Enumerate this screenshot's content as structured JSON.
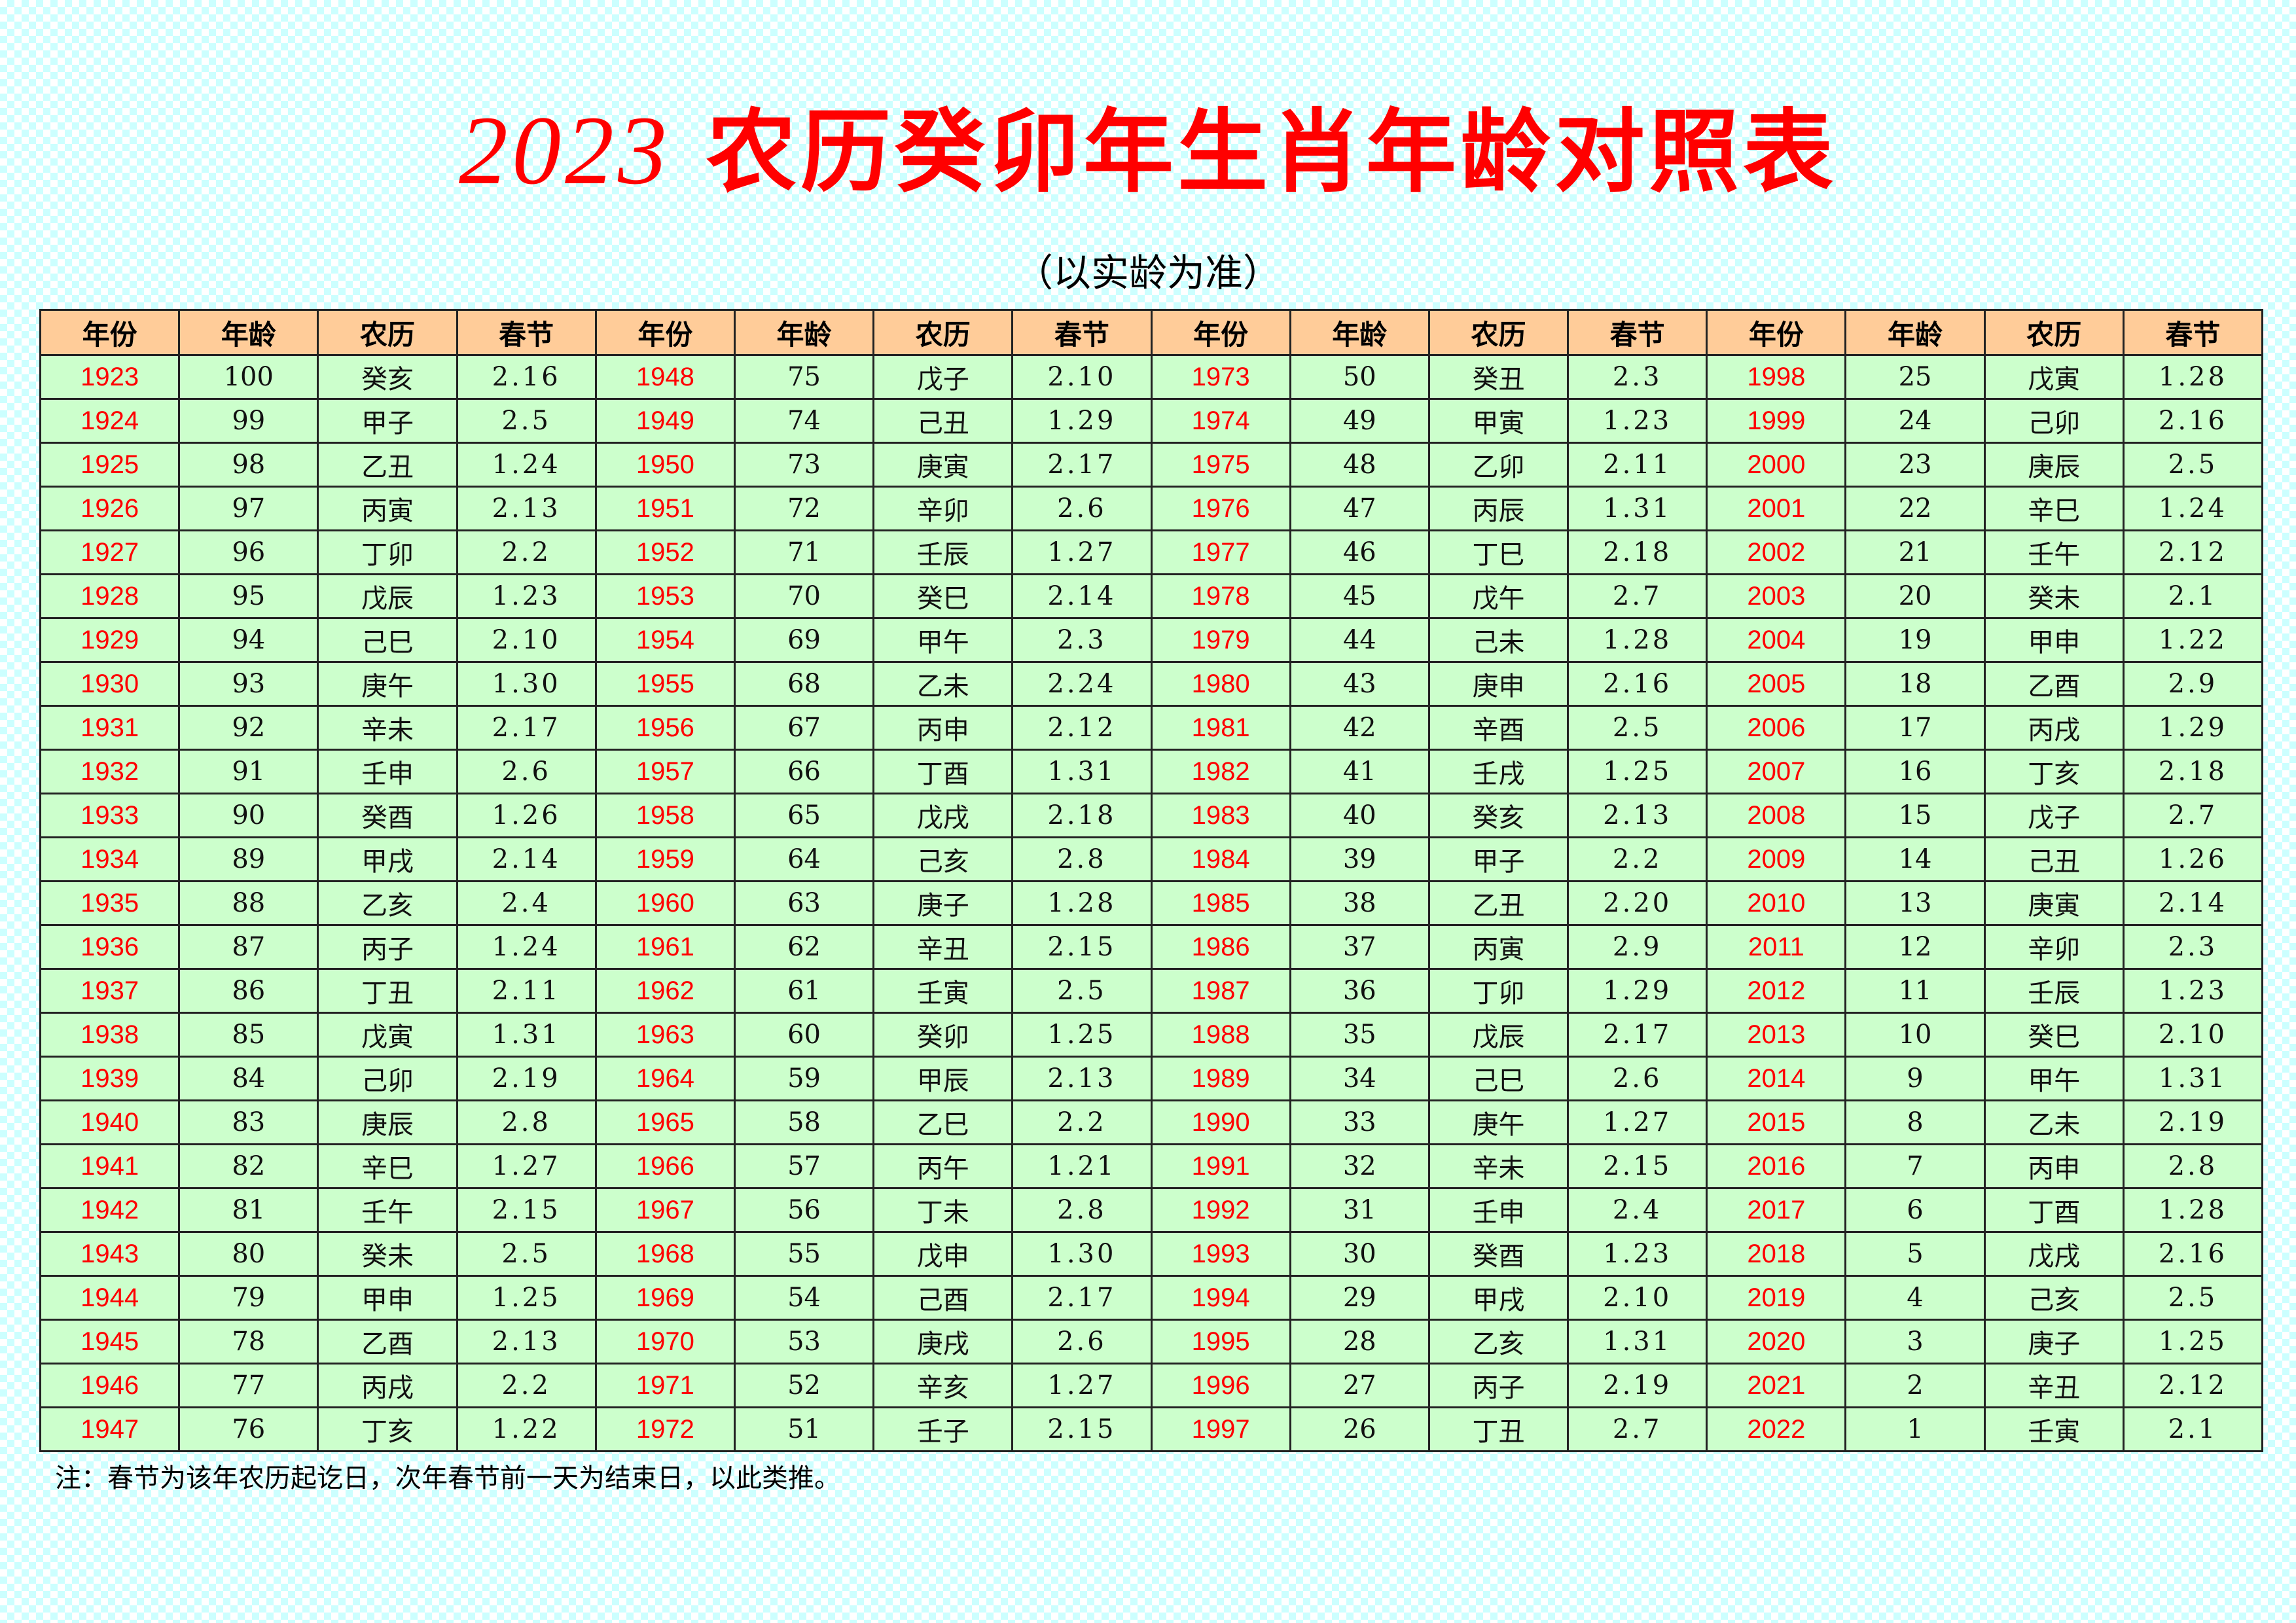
{
  "title": {
    "year": "2023",
    "text": "农历癸卯年生肖年龄对照表"
  },
  "subtitle": "（以实龄为准）",
  "headers": [
    "年份",
    "年龄",
    "农历",
    "春节",
    "年份",
    "年龄",
    "农历",
    "春节",
    "年份",
    "年龄",
    "农历",
    "春节",
    "年份",
    "年龄",
    "农历",
    "春节"
  ],
  "rows": [
    [
      "1923",
      "100",
      "癸亥",
      "2.16",
      "1948",
      "75",
      "戊子",
      "2.10",
      "1973",
      "50",
      "癸丑",
      "2.3",
      "1998",
      "25",
      "戊寅",
      "1.28"
    ],
    [
      "1924",
      "99",
      "甲子",
      "2.5",
      "1949",
      "74",
      "己丑",
      "1.29",
      "1974",
      "49",
      "甲寅",
      "1.23",
      "1999",
      "24",
      "己卯",
      "2.16"
    ],
    [
      "1925",
      "98",
      "乙丑",
      "1.24",
      "1950",
      "73",
      "庚寅",
      "2.17",
      "1975",
      "48",
      "乙卯",
      "2.11",
      "2000",
      "23",
      "庚辰",
      "2.5"
    ],
    [
      "1926",
      "97",
      "丙寅",
      "2.13",
      "1951",
      "72",
      "辛卯",
      "2.6",
      "1976",
      "47",
      "丙辰",
      "1.31",
      "2001",
      "22",
      "辛巳",
      "1.24"
    ],
    [
      "1927",
      "96",
      "丁卯",
      "2.2",
      "1952",
      "71",
      "壬辰",
      "1.27",
      "1977",
      "46",
      "丁巳",
      "2.18",
      "2002",
      "21",
      "壬午",
      "2.12"
    ],
    [
      "1928",
      "95",
      "戊辰",
      "1.23",
      "1953",
      "70",
      "癸巳",
      "2.14",
      "1978",
      "45",
      "戊午",
      "2.7",
      "2003",
      "20",
      "癸未",
      "2.1"
    ],
    [
      "1929",
      "94",
      "己巳",
      "2.10",
      "1954",
      "69",
      "甲午",
      "2.3",
      "1979",
      "44",
      "己未",
      "1.28",
      "2004",
      "19",
      "甲申",
      "1.22"
    ],
    [
      "1930",
      "93",
      "庚午",
      "1.30",
      "1955",
      "68",
      "乙未",
      "2.24",
      "1980",
      "43",
      "庚申",
      "2.16",
      "2005",
      "18",
      "乙酉",
      "2.9"
    ],
    [
      "1931",
      "92",
      "辛未",
      "2.17",
      "1956",
      "67",
      "丙申",
      "2.12",
      "1981",
      "42",
      "辛酉",
      "2.5",
      "2006",
      "17",
      "丙戌",
      "1.29"
    ],
    [
      "1932",
      "91",
      "壬申",
      "2.6",
      "1957",
      "66",
      "丁酉",
      "1.31",
      "1982",
      "41",
      "壬戌",
      "1.25",
      "2007",
      "16",
      "丁亥",
      "2.18"
    ],
    [
      "1933",
      "90",
      "癸酉",
      "1.26",
      "1958",
      "65",
      "戊戌",
      "2.18",
      "1983",
      "40",
      "癸亥",
      "2.13",
      "2008",
      "15",
      "戊子",
      "2.7"
    ],
    [
      "1934",
      "89",
      "甲戌",
      "2.14",
      "1959",
      "64",
      "己亥",
      "2.8",
      "1984",
      "39",
      "甲子",
      "2.2",
      "2009",
      "14",
      "己丑",
      "1.26"
    ],
    [
      "1935",
      "88",
      "乙亥",
      "2.4",
      "1960",
      "63",
      "庚子",
      "1.28",
      "1985",
      "38",
      "乙丑",
      "2.20",
      "2010",
      "13",
      "庚寅",
      "2.14"
    ],
    [
      "1936",
      "87",
      "丙子",
      "1.24",
      "1961",
      "62",
      "辛丑",
      "2.15",
      "1986",
      "37",
      "丙寅",
      "2.9",
      "2011",
      "12",
      "辛卯",
      "2.3"
    ],
    [
      "1937",
      "86",
      "丁丑",
      "2.11",
      "1962",
      "61",
      "壬寅",
      "2.5",
      "1987",
      "36",
      "丁卯",
      "1.29",
      "2012",
      "11",
      "壬辰",
      "1.23"
    ],
    [
      "1938",
      "85",
      "戊寅",
      "1.31",
      "1963",
      "60",
      "癸卯",
      "1.25",
      "1988",
      "35",
      "戊辰",
      "2.17",
      "2013",
      "10",
      "癸巳",
      "2.10"
    ],
    [
      "1939",
      "84",
      "己卯",
      "2.19",
      "1964",
      "59",
      "甲辰",
      "2.13",
      "1989",
      "34",
      "己巳",
      "2.6",
      "2014",
      "9",
      "甲午",
      "1.31"
    ],
    [
      "1940",
      "83",
      "庚辰",
      "2.8",
      "1965",
      "58",
      "乙巳",
      "2.2",
      "1990",
      "33",
      "庚午",
      "1.27",
      "2015",
      "8",
      "乙未",
      "2.19"
    ],
    [
      "1941",
      "82",
      "辛巳",
      "1.27",
      "1966",
      "57",
      "丙午",
      "1.21",
      "1991",
      "32",
      "辛未",
      "2.15",
      "2016",
      "7",
      "丙申",
      "2.8"
    ],
    [
      "1942",
      "81",
      "壬午",
      "2.15",
      "1967",
      "56",
      "丁未",
      "2.8",
      "1992",
      "31",
      "壬申",
      "2.4",
      "2017",
      "6",
      "丁酉",
      "1.28"
    ],
    [
      "1943",
      "80",
      "癸未",
      "2.5",
      "1968",
      "55",
      "戊申",
      "1.30",
      "1993",
      "30",
      "癸酉",
      "1.23",
      "2018",
      "5",
      "戊戌",
      "2.16"
    ],
    [
      "1944",
      "79",
      "甲申",
      "1.25",
      "1969",
      "54",
      "己酉",
      "2.17",
      "1994",
      "29",
      "甲戌",
      "2.10",
      "2019",
      "4",
      "己亥",
      "2.5"
    ],
    [
      "1945",
      "78",
      "乙酉",
      "2.13",
      "1970",
      "53",
      "庚戌",
      "2.6",
      "1995",
      "28",
      "乙亥",
      "1.31",
      "2020",
      "3",
      "庚子",
      "1.25"
    ],
    [
      "1946",
      "77",
      "丙戌",
      "2.2",
      "1971",
      "52",
      "辛亥",
      "1.27",
      "1996",
      "27",
      "丙子",
      "2.19",
      "2021",
      "2",
      "辛丑",
      "2.12"
    ],
    [
      "1947",
      "76",
      "丁亥",
      "1.22",
      "1972",
      "51",
      "壬子",
      "2.15",
      "1997",
      "26",
      "丁丑",
      "2.7",
      "2022",
      "1",
      "壬寅",
      "2.1"
    ]
  ],
  "note": "注：春节为该年农历起讫日，次年春节前一天为结束日，以此类推。",
  "colors": {
    "title": "#ff0000",
    "year_text": "#ff0000",
    "header_bg": "#ffcc99",
    "cell_bg": "#ccffcc",
    "background_check": "#ccffff"
  }
}
